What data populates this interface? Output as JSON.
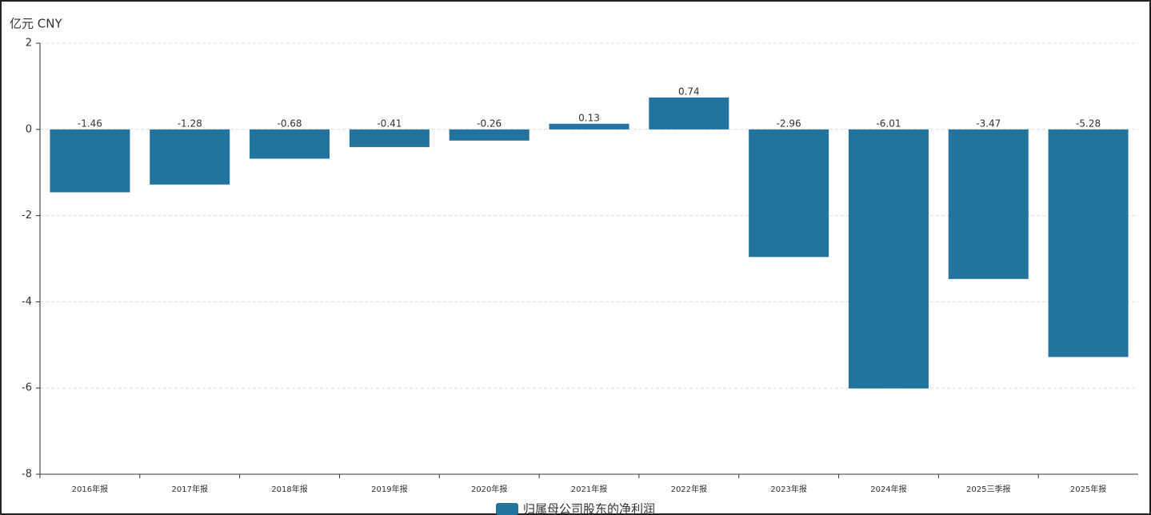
{
  "chart_data": {
    "type": "bar",
    "y_axis_label": "亿元  CNY",
    "categories": [
      "2016年报",
      "2017年报",
      "2018年报",
      "2019年报",
      "2020年报",
      "2021年报",
      "2022年报",
      "2023年报",
      "2024年报",
      "2025三季报",
      "2025年报"
    ],
    "series": [
      {
        "name": "归属母公司股东的净利润",
        "color": "#22749f",
        "values": [
          -1.46,
          -1.28,
          -0.68,
          -0.41,
          -0.26,
          0.13,
          0.74,
          -2.96,
          -6.01,
          -3.47,
          -5.28
        ]
      }
    ],
    "ylim": [
      -8,
      2
    ],
    "yticks": [
      2,
      0,
      -2,
      -4,
      -6,
      -8
    ],
    "grid": true
  }
}
